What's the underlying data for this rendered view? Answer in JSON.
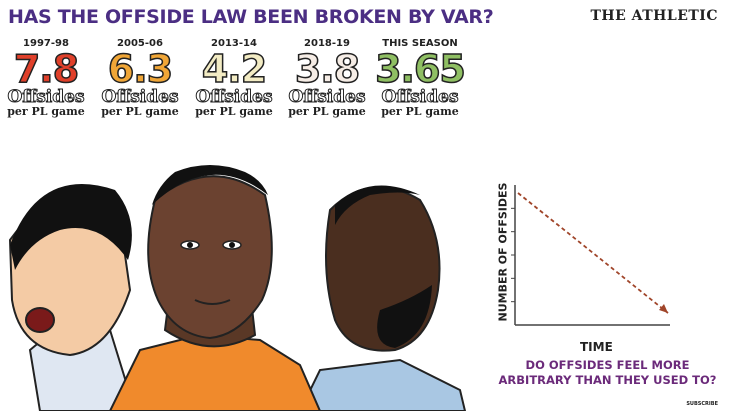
{
  "header": {
    "title": "HAS THE OFFSIDE LAW BEEN BROKEN BY VAR?",
    "brand": "THE ATHLETIC"
  },
  "stats": [
    {
      "period": "1997-98",
      "value": "7.8",
      "unit": "Offsides",
      "per": "per PL game",
      "color": "#e0402a"
    },
    {
      "period": "2005-06",
      "value": "6.3",
      "unit": "Offsides",
      "per": "per PL game",
      "color": "#f0a637"
    },
    {
      "period": "2013-14",
      "value": "4.2",
      "unit": "Offsides",
      "per": "per PL game",
      "color": "#f3ecc4"
    },
    {
      "period": "2018-19",
      "value": "3.8",
      "unit": "Offsides",
      "per": "per PL game",
      "color": "#f6ede6"
    },
    {
      "period": "THIS SEASON",
      "value": "3.65",
      "unit": "Offsides",
      "per": "per PL game",
      "color": "#8fbf63"
    }
  ],
  "chart_data": {
    "type": "line",
    "title": "",
    "xlabel": "TIME",
    "ylabel": "NUMBER OF OFFSIDES",
    "series": [
      {
        "values": [
          1,
          0
        ]
      }
    ],
    "x": [
      0,
      1
    ],
    "ylim": [
      0,
      1
    ],
    "grid": false,
    "line_style": "dashed",
    "color": "#a0452a"
  },
  "footer": {
    "question": "DO OFFSIDES FEEL MORE ARBITRARY THAN THEY USED TO?",
    "subscribe": "SUBSCRIBE"
  },
  "colors": {
    "title": "#4b2e83",
    "question": "#6b2a7a",
    "skin_dark": "#5a3826",
    "shirt_orange": "#f08a2c",
    "shirt_blue": "#a9c7e3"
  }
}
